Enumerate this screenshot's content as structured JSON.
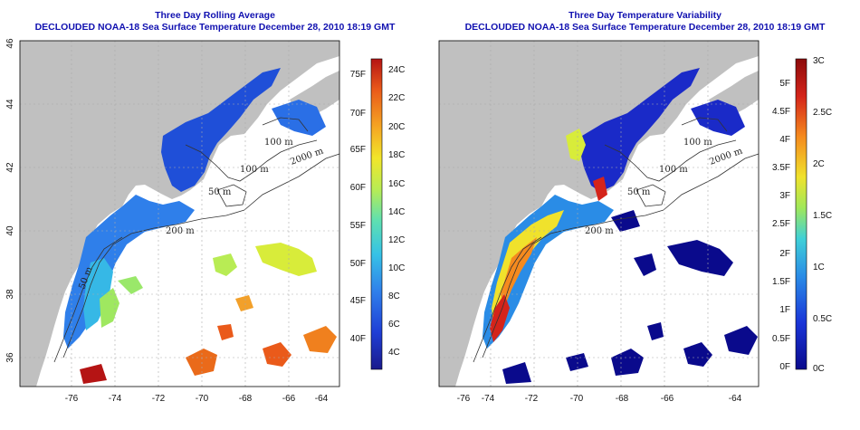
{
  "panels": [
    {
      "title_line1": "Three Day Rolling Average",
      "title_line2": "DECLOUDED NOAA-18 Sea Surface Temperature December 28, 2010 18:19 GMT",
      "colorbar": {
        "left_labels": [
          "75F",
          "70F",
          "65F",
          "60F",
          "55F",
          "50F",
          "45F",
          "40F"
        ],
        "right_labels": [
          "24C",
          "22C",
          "20C",
          "18C",
          "16C",
          "14C",
          "12C",
          "10C",
          "8C",
          "6C",
          "4C"
        ]
      }
    },
    {
      "title_line1": "Three Day Temperature Variability",
      "title_line2": "DECLOUDED NOAA-18 Sea Surface Temperature December 28, 2010 18:19 GMT",
      "colorbar": {
        "left_labels": [
          "5F",
          "4.5F",
          "4F",
          "3.5F",
          "3F",
          "2.5F",
          "2F",
          "1.5F",
          "1F",
          "0.5F",
          "0F"
        ],
        "right_labels": [
          "3C",
          "2.5C",
          "2C",
          "1.5C",
          "1C",
          "0.5C",
          "0C"
        ]
      }
    }
  ],
  "axes": {
    "x_ticks": [
      "-76",
      "-74",
      "-72",
      "-70",
      "-68",
      "-66",
      "-64"
    ],
    "y_ticks": [
      "46",
      "44",
      "42",
      "40",
      "38",
      "36"
    ]
  },
  "contours": {
    "c100a": "100 m",
    "c2000": "2000 m",
    "c100b": "100 m",
    "c50": "50 m",
    "c200": "200 m",
    "c50b": "50 m"
  },
  "colors": {
    "land": "#c0c0c0",
    "ocean": "#ffffff",
    "title": "#1010b0",
    "grid": "#aaaaaa"
  },
  "temperature_scale": [
    "#1a1a8c",
    "#1f3fd6",
    "#2f7fea",
    "#36c2e6",
    "#5fe0b0",
    "#b8ec54",
    "#f2e62a",
    "#f5a623",
    "#ea5a1a",
    "#b51414"
  ],
  "variability_scale": [
    "#0a0a8c",
    "#1a35d8",
    "#2a8ce6",
    "#3fd0d8",
    "#a0e85a",
    "#f0e22c",
    "#f58a1e",
    "#d4241a",
    "#8c0a0a"
  ]
}
